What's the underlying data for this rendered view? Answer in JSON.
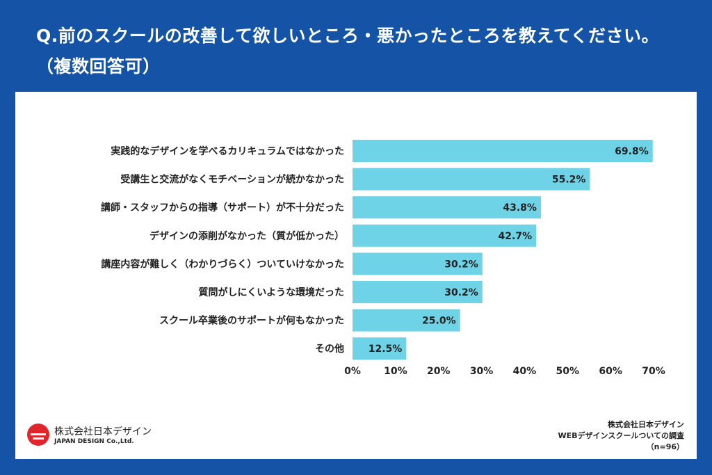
{
  "title": "Q.前のスクールの改善して欲しいところ・悪かったところを教えてください。（複数回答可）",
  "chart_data": {
    "type": "bar",
    "orientation": "horizontal",
    "categories": [
      "実践的なデザインを学べるカリキュラムではなかった",
      "受講生と交流がなくモチベーションが続かなかった",
      "講師・スタッフからの指導（サポート）が不十分だった",
      "デザインの添削がなかった（質が低かった）",
      "講座内容が難しく（わかりづらく）ついていけなかった",
      "質問がしにくいような環境だった",
      "スクール卒業後のサポートが何もなかった",
      "その他"
    ],
    "values": [
      69.8,
      55.2,
      43.8,
      42.7,
      30.2,
      30.2,
      25.0,
      12.5
    ],
    "data_labels": [
      "69.8%",
      "55.2%",
      "43.8%",
      "42.7%",
      "30.2%",
      "30.2%",
      "25.0%",
      "12.5%"
    ],
    "xlim": [
      0,
      70
    ],
    "x_ticks": [
      "0%",
      "10%",
      "20%",
      "30%",
      "40%",
      "50%",
      "60%",
      "70%"
    ],
    "grid": false,
    "bar_color": "#6fd3e8"
  },
  "logo": {
    "line1": "株式会社日本デザイン",
    "line2": "JAPAN DESIGN Co.,Ltd."
  },
  "source": {
    "line1": "株式会社日本デザイン",
    "line2": "WEBデザインスクールついての調査",
    "line3": "（n=96）"
  }
}
